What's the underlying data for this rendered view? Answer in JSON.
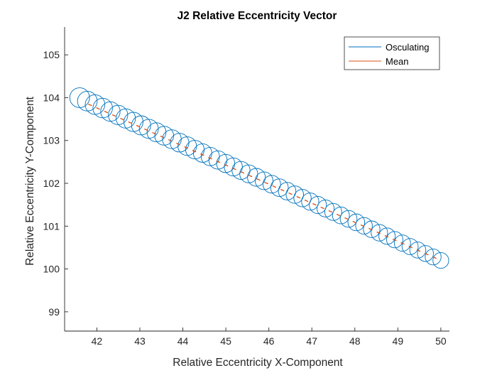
{
  "chart_data": {
    "type": "line",
    "title": "J2 Relative Eccentricity Vector",
    "xlabel": "Relative Eccentricity X-Component",
    "ylabel": "Relative Eccentricity Y-Component",
    "xlim": [
      41.25,
      50.2
    ],
    "ylim": [
      98.55,
      105.65
    ],
    "xticks": [
      42,
      43,
      44,
      45,
      46,
      47,
      48,
      49,
      50
    ],
    "yticks": [
      99,
      100,
      101,
      102,
      103,
      104,
      105
    ],
    "grid": false,
    "legend_position": "top-right",
    "series": [
      {
        "name": "Osculating",
        "color": "#0072BD",
        "kind": "circles",
        "start": [
          41.6,
          104.0
        ],
        "end": [
          50.0,
          100.2
        ],
        "loop_count": 48,
        "loop_radius": 0.23
      },
      {
        "name": "Mean",
        "color": "#D95319",
        "kind": "dashed-line",
        "start": [
          41.8,
          103.85
        ],
        "end": [
          50.0,
          100.2
        ]
      }
    ]
  }
}
